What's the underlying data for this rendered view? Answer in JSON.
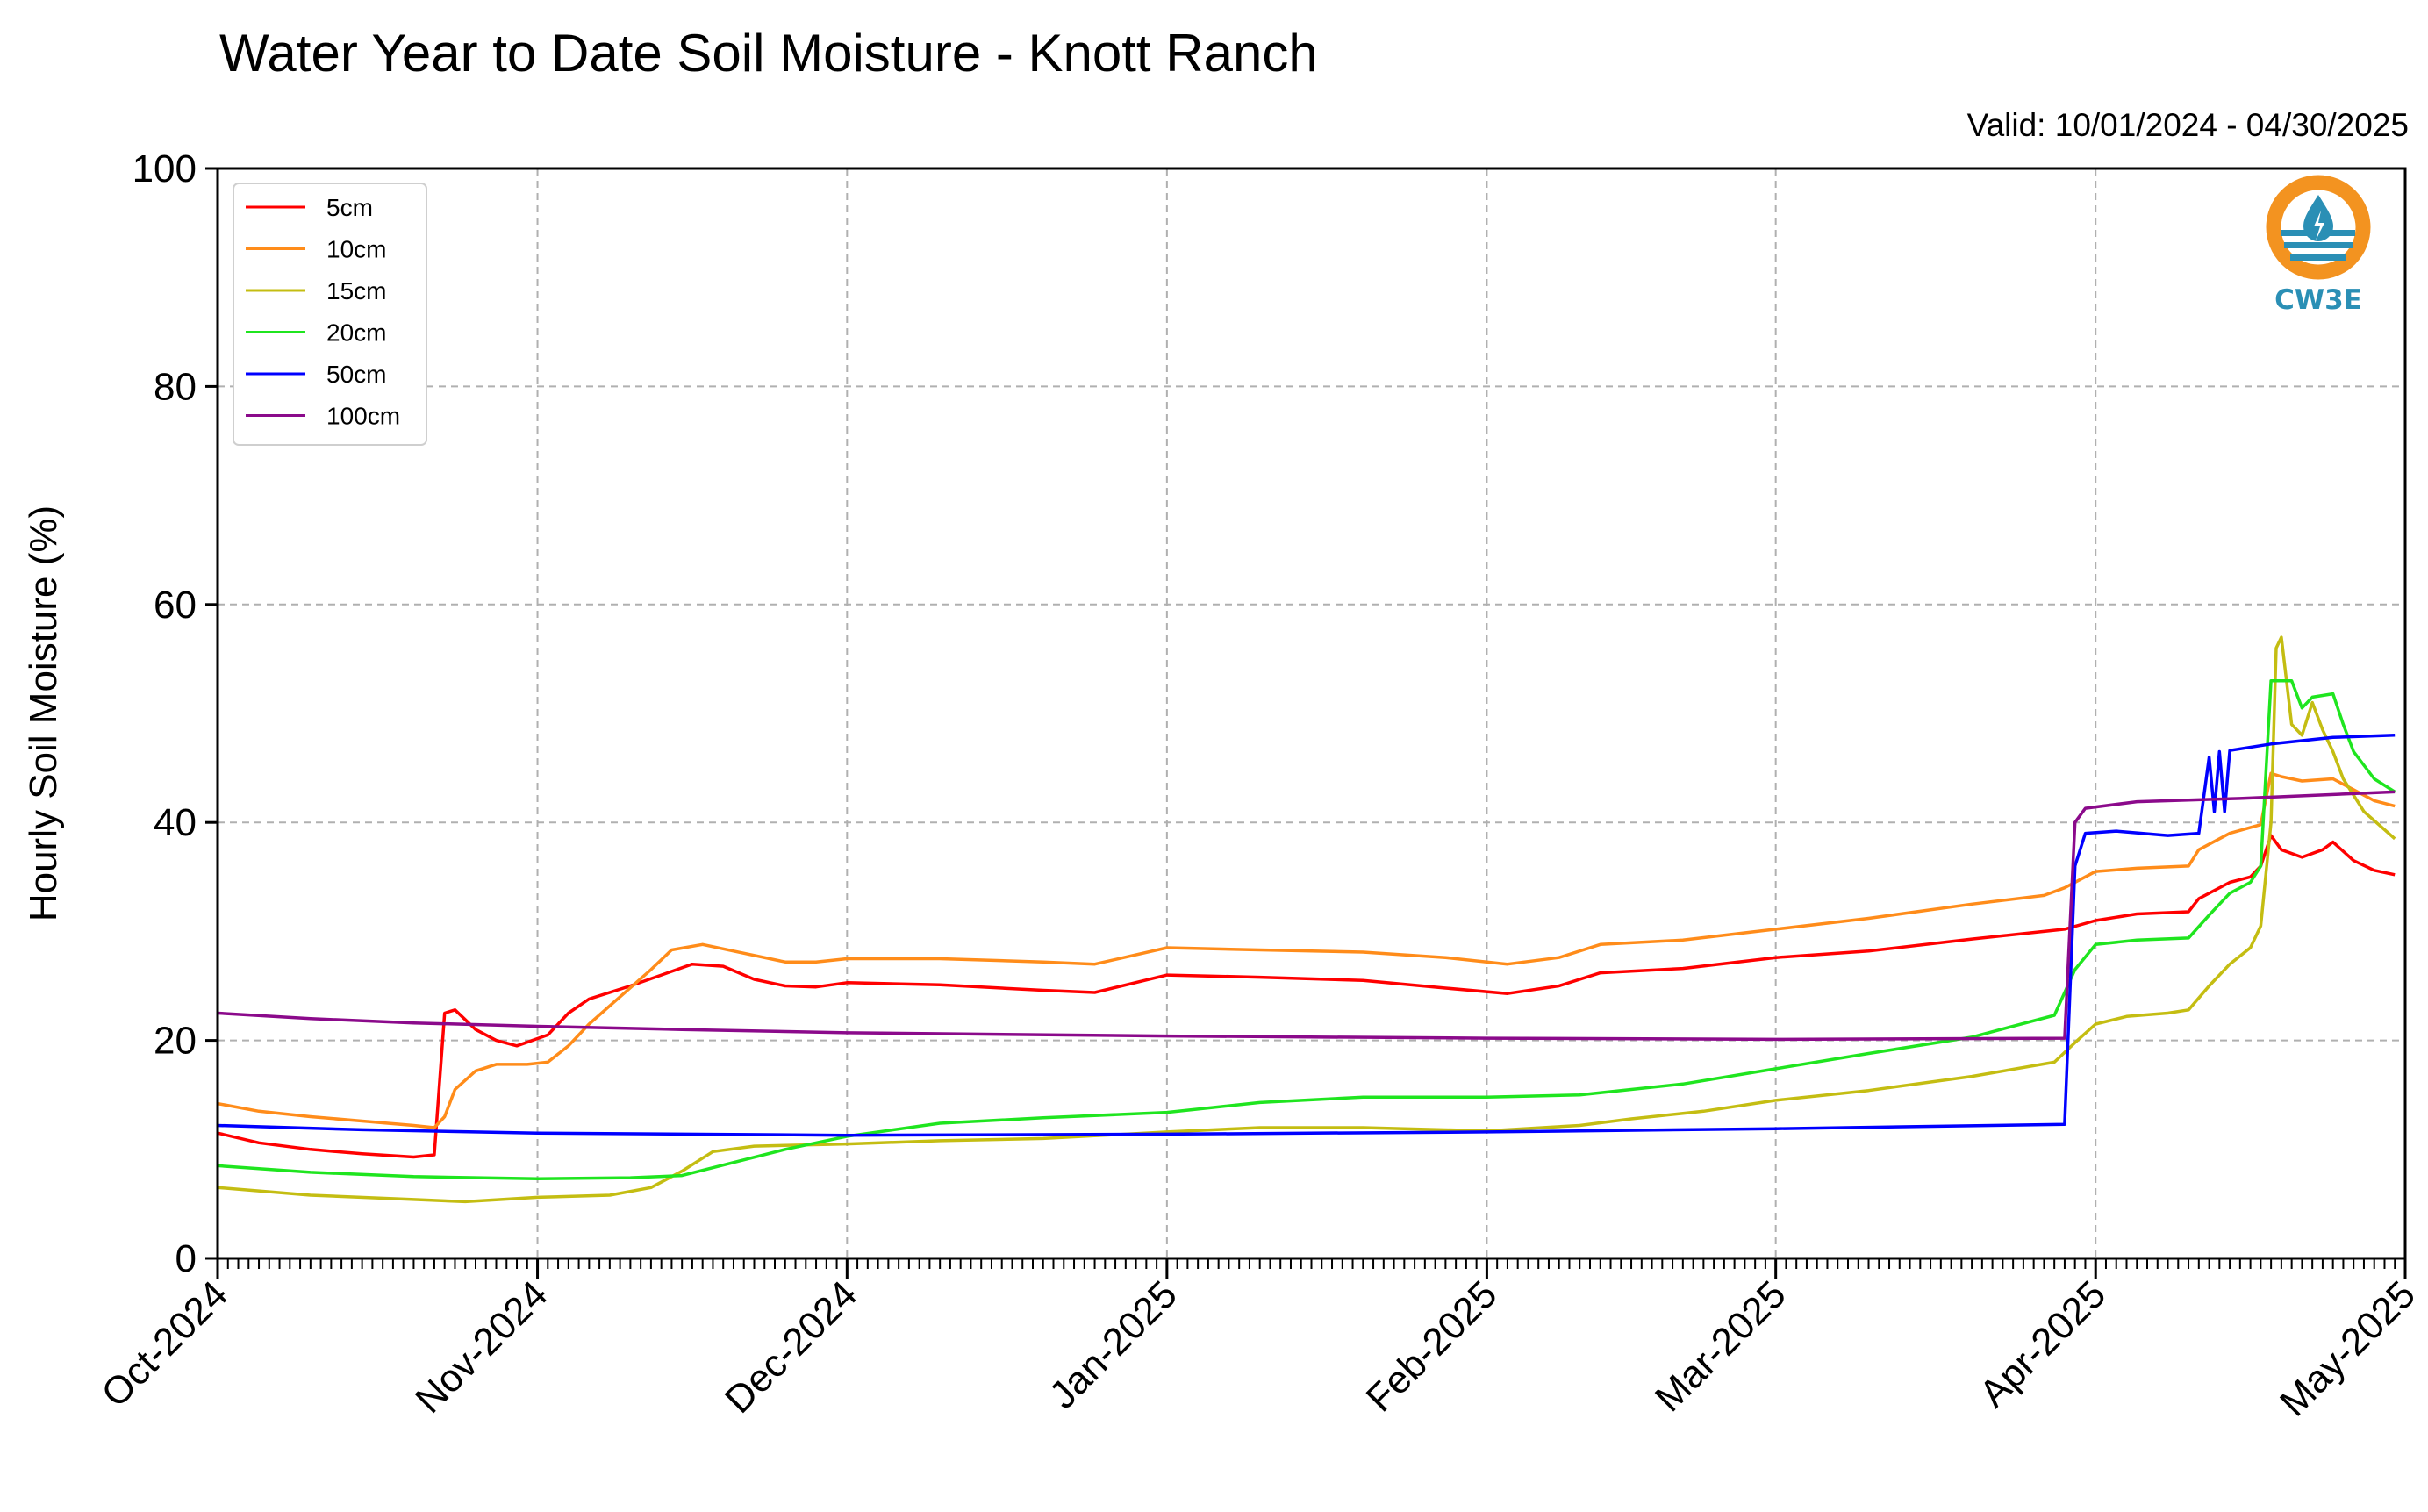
{
  "valid_label": "Valid: 10/01/2024 - 04/30/2025",
  "logo": {
    "text": "CW3E",
    "icon": "cw3e-droplet-logo-icon",
    "orange": "#f39320",
    "teal": "#2a8fb5"
  },
  "chart_data": {
    "type": "line",
    "title": "Water Year to Date Soil Moisture - Knott Ranch",
    "xlabel": "",
    "ylabel": "Hourly Soil Moisture (%)",
    "xlim": [
      "2024-10-01",
      "2025-05-01"
    ],
    "ylim": [
      0,
      100
    ],
    "y_ticks": [
      0,
      20,
      40,
      60,
      80,
      100
    ],
    "x_ticks": [
      {
        "date": "2024-10-01",
        "label": "Oct-2024"
      },
      {
        "date": "2024-11-01",
        "label": "Nov-2024"
      },
      {
        "date": "2024-12-01",
        "label": "Dec-2024"
      },
      {
        "date": "2025-01-01",
        "label": "Jan-2025"
      },
      {
        "date": "2025-02-01",
        "label": "Feb-2025"
      },
      {
        "date": "2025-03-01",
        "label": "Mar-2025"
      },
      {
        "date": "2025-04-01",
        "label": "Apr-2025"
      },
      {
        "date": "2025-05-01",
        "label": "May-2025"
      }
    ],
    "grid": true,
    "legend": "top-left",
    "series": [
      {
        "name": "5cm",
        "color": "#ff0000",
        "points": [
          [
            "2024-10-01",
            11.5
          ],
          [
            "2024-10-05",
            10.6
          ],
          [
            "2024-10-10",
            10.0
          ],
          [
            "2024-10-15",
            9.6
          ],
          [
            "2024-10-20",
            9.3
          ],
          [
            "2024-10-22",
            9.5
          ],
          [
            "2024-10-23",
            22.5
          ],
          [
            "2024-10-24",
            22.8
          ],
          [
            "2024-10-26",
            21.0
          ],
          [
            "2024-10-28",
            20.0
          ],
          [
            "2024-10-30",
            19.5
          ],
          [
            "2024-11-02",
            20.5
          ],
          [
            "2024-11-04",
            22.5
          ],
          [
            "2024-11-06",
            23.8
          ],
          [
            "2024-11-10",
            25.0
          ],
          [
            "2024-11-13",
            26.0
          ],
          [
            "2024-11-16",
            27.0
          ],
          [
            "2024-11-19",
            26.8
          ],
          [
            "2024-11-22",
            25.6
          ],
          [
            "2024-11-25",
            25.0
          ],
          [
            "2024-11-28",
            24.9
          ],
          [
            "2024-12-01",
            25.3
          ],
          [
            "2024-12-10",
            25.1
          ],
          [
            "2024-12-20",
            24.6
          ],
          [
            "2024-12-25",
            24.4
          ],
          [
            "2025-01-01",
            26.0
          ],
          [
            "2025-01-10",
            25.8
          ],
          [
            "2025-01-20",
            25.5
          ],
          [
            "2025-01-28",
            24.8
          ],
          [
            "2025-02-03",
            24.3
          ],
          [
            "2025-02-08",
            25.0
          ],
          [
            "2025-02-12",
            26.2
          ],
          [
            "2025-02-20",
            26.6
          ],
          [
            "2025-03-01",
            27.6
          ],
          [
            "2025-03-10",
            28.2
          ],
          [
            "2025-03-20",
            29.3
          ],
          [
            "2025-03-27",
            30.0
          ],
          [
            "2025-03-29",
            30.2
          ],
          [
            "2025-04-01",
            31.0
          ],
          [
            "2025-04-05",
            31.6
          ],
          [
            "2025-04-10",
            31.8
          ],
          [
            "2025-04-11",
            33.0
          ],
          [
            "2025-04-14",
            34.5
          ],
          [
            "2025-04-16",
            35.0
          ],
          [
            "2025-04-17",
            36.0
          ],
          [
            "2025-04-18",
            38.8
          ],
          [
            "2025-04-19",
            37.5
          ],
          [
            "2025-04-21",
            36.8
          ],
          [
            "2025-04-23",
            37.5
          ],
          [
            "2025-04-24",
            38.2
          ],
          [
            "2025-04-26",
            36.5
          ],
          [
            "2025-04-28",
            35.6
          ],
          [
            "2025-04-30",
            35.2
          ]
        ]
      },
      {
        "name": "10cm",
        "color": "#ff8c1a",
        "points": [
          [
            "2024-10-01",
            14.2
          ],
          [
            "2024-10-05",
            13.5
          ],
          [
            "2024-10-10",
            13.0
          ],
          [
            "2024-10-15",
            12.6
          ],
          [
            "2024-10-20",
            12.2
          ],
          [
            "2024-10-22",
            12.0
          ],
          [
            "2024-10-23",
            13.0
          ],
          [
            "2024-10-24",
            15.5
          ],
          [
            "2024-10-26",
            17.2
          ],
          [
            "2024-10-28",
            17.8
          ],
          [
            "2024-10-31",
            17.8
          ],
          [
            "2024-11-02",
            18.0
          ],
          [
            "2024-11-04",
            19.5
          ],
          [
            "2024-11-06",
            21.5
          ],
          [
            "2024-11-09",
            24.0
          ],
          [
            "2024-11-12",
            26.5
          ],
          [
            "2024-11-14",
            28.3
          ],
          [
            "2024-11-17",
            28.8
          ],
          [
            "2024-11-20",
            28.2
          ],
          [
            "2024-11-25",
            27.2
          ],
          [
            "2024-11-28",
            27.2
          ],
          [
            "2024-12-01",
            27.5
          ],
          [
            "2024-12-10",
            27.5
          ],
          [
            "2024-12-20",
            27.2
          ],
          [
            "2024-12-25",
            27.0
          ],
          [
            "2025-01-01",
            28.5
          ],
          [
            "2025-01-10",
            28.3
          ],
          [
            "2025-01-20",
            28.1
          ],
          [
            "2025-01-28",
            27.6
          ],
          [
            "2025-02-03",
            27.0
          ],
          [
            "2025-02-08",
            27.6
          ],
          [
            "2025-02-12",
            28.8
          ],
          [
            "2025-02-20",
            29.2
          ],
          [
            "2025-03-01",
            30.2
          ],
          [
            "2025-03-10",
            31.2
          ],
          [
            "2025-03-20",
            32.5
          ],
          [
            "2025-03-27",
            33.3
          ],
          [
            "2025-03-29",
            34.0
          ],
          [
            "2025-04-01",
            35.5
          ],
          [
            "2025-04-05",
            35.8
          ],
          [
            "2025-04-10",
            36.0
          ],
          [
            "2025-04-11",
            37.5
          ],
          [
            "2025-04-14",
            39.0
          ],
          [
            "2025-04-17",
            39.8
          ],
          [
            "2025-04-18",
            44.5
          ],
          [
            "2025-04-19",
            44.2
          ],
          [
            "2025-04-21",
            43.8
          ],
          [
            "2025-04-24",
            44.0
          ],
          [
            "2025-04-26",
            43.0
          ],
          [
            "2025-04-28",
            42.0
          ],
          [
            "2025-04-30",
            41.5
          ]
        ]
      },
      {
        "name": "15cm",
        "color": "#c4bd12",
        "points": [
          [
            "2024-10-01",
            6.5
          ],
          [
            "2024-10-10",
            5.8
          ],
          [
            "2024-10-20",
            5.4
          ],
          [
            "2024-10-25",
            5.2
          ],
          [
            "2024-11-01",
            5.6
          ],
          [
            "2024-11-08",
            5.8
          ],
          [
            "2024-11-12",
            6.5
          ],
          [
            "2024-11-15",
            8.0
          ],
          [
            "2024-11-18",
            9.8
          ],
          [
            "2024-11-22",
            10.3
          ],
          [
            "2024-12-01",
            10.5
          ],
          [
            "2024-12-10",
            10.8
          ],
          [
            "2024-12-20",
            11.0
          ],
          [
            "2025-01-01",
            11.6
          ],
          [
            "2025-01-10",
            12.0
          ],
          [
            "2025-01-20",
            12.0
          ],
          [
            "2025-02-01",
            11.7
          ],
          [
            "2025-02-10",
            12.2
          ],
          [
            "2025-02-15",
            12.8
          ],
          [
            "2025-02-22",
            13.5
          ],
          [
            "2025-03-01",
            14.5
          ],
          [
            "2025-03-10",
            15.4
          ],
          [
            "2025-03-20",
            16.7
          ],
          [
            "2025-03-28",
            18.0
          ],
          [
            "2025-03-30",
            19.8
          ],
          [
            "2025-04-01",
            21.5
          ],
          [
            "2025-04-04",
            22.2
          ],
          [
            "2025-04-08",
            22.5
          ],
          [
            "2025-04-10",
            22.8
          ],
          [
            "2025-04-12",
            25.0
          ],
          [
            "2025-04-14",
            27.0
          ],
          [
            "2025-04-16",
            28.5
          ],
          [
            "2025-04-17",
            30.5
          ],
          [
            "2025-04-18",
            40.0
          ],
          [
            "2025-04-18T12:00",
            56.0
          ],
          [
            "2025-04-19",
            57.0
          ],
          [
            "2025-04-20",
            49.0
          ],
          [
            "2025-04-21",
            48.0
          ],
          [
            "2025-04-22",
            51.0
          ],
          [
            "2025-04-23",
            48.5
          ],
          [
            "2025-04-24",
            46.5
          ],
          [
            "2025-04-25",
            44.0
          ],
          [
            "2025-04-27",
            41.0
          ],
          [
            "2025-04-30",
            38.5
          ]
        ]
      },
      {
        "name": "20cm",
        "color": "#1fe51f",
        "points": [
          [
            "2024-10-01",
            8.5
          ],
          [
            "2024-10-10",
            7.9
          ],
          [
            "2024-10-20",
            7.5
          ],
          [
            "2024-11-01",
            7.3
          ],
          [
            "2024-11-10",
            7.4
          ],
          [
            "2024-11-15",
            7.6
          ],
          [
            "2024-11-20",
            8.8
          ],
          [
            "2024-11-25",
            10.0
          ],
          [
            "2024-12-01",
            11.2
          ],
          [
            "2024-12-10",
            12.4
          ],
          [
            "2024-12-20",
            12.9
          ],
          [
            "2025-01-01",
            13.4
          ],
          [
            "2025-01-10",
            14.3
          ],
          [
            "2025-01-20",
            14.8
          ],
          [
            "2025-02-01",
            14.8
          ],
          [
            "2025-02-10",
            15.0
          ],
          [
            "2025-02-20",
            16.0
          ],
          [
            "2025-03-01",
            17.4
          ],
          [
            "2025-03-10",
            18.8
          ],
          [
            "2025-03-20",
            20.3
          ],
          [
            "2025-03-28",
            22.3
          ],
          [
            "2025-03-30",
            26.5
          ],
          [
            "2025-04-01",
            28.8
          ],
          [
            "2025-04-05",
            29.2
          ],
          [
            "2025-04-10",
            29.4
          ],
          [
            "2025-04-12",
            31.5
          ],
          [
            "2025-04-14",
            33.5
          ],
          [
            "2025-04-16",
            34.5
          ],
          [
            "2025-04-17",
            36.0
          ],
          [
            "2025-04-18",
            53.0
          ],
          [
            "2025-04-20",
            53.0
          ],
          [
            "2025-04-21",
            50.5
          ],
          [
            "2025-04-22",
            51.5
          ],
          [
            "2025-04-24",
            51.8
          ],
          [
            "2025-04-25",
            49.0
          ],
          [
            "2025-04-26",
            46.5
          ],
          [
            "2025-04-28",
            44.0
          ],
          [
            "2025-04-30",
            42.8
          ]
        ]
      },
      {
        "name": "50cm",
        "color": "#0000ff",
        "points": [
          [
            "2024-10-01",
            12.2
          ],
          [
            "2024-10-15",
            11.8
          ],
          [
            "2024-11-01",
            11.5
          ],
          [
            "2024-12-01",
            11.3
          ],
          [
            "2025-01-01",
            11.4
          ],
          [
            "2025-02-01",
            11.6
          ],
          [
            "2025-03-01",
            11.9
          ],
          [
            "2025-03-29",
            12.3
          ],
          [
            "2025-03-30",
            36.0
          ],
          [
            "2025-03-31",
            39.0
          ],
          [
            "2025-04-03",
            39.2
          ],
          [
            "2025-04-08",
            38.8
          ],
          [
            "2025-04-11",
            39.0
          ],
          [
            "2025-04-12",
            46.0
          ],
          [
            "2025-04-12T12:00",
            41.0
          ],
          [
            "2025-04-13",
            46.5
          ],
          [
            "2025-04-13T12:00",
            41.0
          ],
          [
            "2025-04-14",
            46.6
          ],
          [
            "2025-04-18",
            47.2
          ],
          [
            "2025-04-24",
            47.8
          ],
          [
            "2025-04-30",
            48.0
          ]
        ]
      },
      {
        "name": "100cm",
        "color": "#8b0a8b",
        "points": [
          [
            "2024-10-01",
            22.5
          ],
          [
            "2024-10-10",
            22.0
          ],
          [
            "2024-10-20",
            21.6
          ],
          [
            "2024-11-01",
            21.3
          ],
          [
            "2024-11-15",
            21.0
          ],
          [
            "2024-12-01",
            20.7
          ],
          [
            "2025-01-01",
            20.4
          ],
          [
            "2025-02-01",
            20.2
          ],
          [
            "2025-03-01",
            20.1
          ],
          [
            "2025-03-29",
            20.2
          ],
          [
            "2025-03-30",
            40.0
          ],
          [
            "2025-03-31",
            41.3
          ],
          [
            "2025-04-05",
            41.9
          ],
          [
            "2025-04-15",
            42.2
          ],
          [
            "2025-04-30",
            42.8
          ]
        ]
      }
    ]
  }
}
